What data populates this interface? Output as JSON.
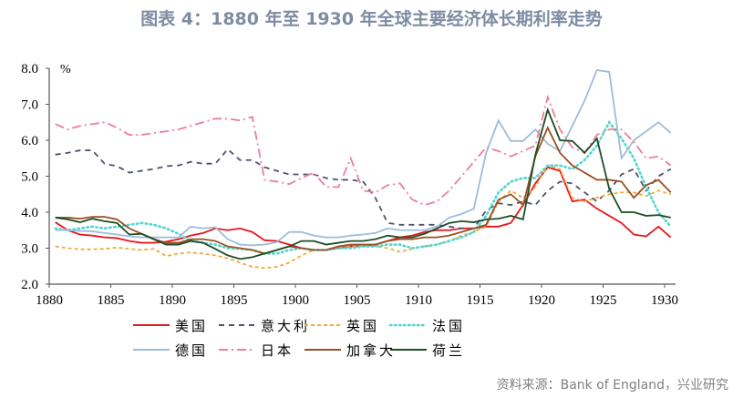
{
  "title": "图表 4：1880 年至 1930 年全球主要经济体长期利率走势",
  "source": "资料来源：Bank of England，兴业研究",
  "chart_data": {
    "type": "line",
    "title": "图表 4：1880 年至 1930 年全球主要经济体长期利率走势",
    "ylabel": "%",
    "xlabel": "",
    "xlim": [
      1880,
      1930
    ],
    "ylim": [
      2.0,
      8.0
    ],
    "xticks": [
      "1880",
      "1885",
      "1890",
      "1895",
      "1900",
      "1905",
      "1910",
      "1915",
      "1920",
      "1925",
      "1930"
    ],
    "yticks": [
      "2.0",
      "3.0",
      "4.0",
      "5.0",
      "6.0",
      "7.0",
      "8.0"
    ],
    "grid": false,
    "legend_placement": "bottom",
    "x_start": 1880,
    "series": [
      {
        "name": "美国",
        "color": "#e8161b",
        "style": "solid",
        "values": [
          3.72,
          3.5,
          3.38,
          3.35,
          3.3,
          3.28,
          3.2,
          3.15,
          3.15,
          3.18,
          3.25,
          3.35,
          3.42,
          3.55,
          3.5,
          3.55,
          3.45,
          3.22,
          3.2,
          3.1,
          3.0,
          2.95,
          2.95,
          3.0,
          3.05,
          3.05,
          3.1,
          3.2,
          3.3,
          3.35,
          3.45,
          3.5,
          3.5,
          3.55,
          3.55,
          3.6,
          3.6,
          3.7,
          4.2,
          4.8,
          5.25,
          5.15,
          4.3,
          4.35,
          4.1,
          3.9,
          3.7,
          3.38,
          3.33,
          3.6,
          3.3
        ]
      },
      {
        "name": "意大利",
        "color": "#4a5470",
        "style": "dash",
        "values": [
          5.6,
          5.65,
          5.72,
          5.72,
          5.35,
          5.28,
          5.1,
          5.15,
          5.2,
          5.28,
          5.3,
          5.4,
          5.35,
          5.35,
          5.75,
          5.45,
          5.45,
          5.25,
          5.15,
          5.05,
          5.05,
          5.05,
          4.95,
          4.9,
          4.9,
          4.85,
          4.4,
          3.7,
          3.65,
          3.65,
          3.65,
          3.65,
          3.6,
          3.55,
          3.55,
          4.05,
          4.25,
          4.2,
          4.3,
          4.2,
          4.6,
          4.85,
          4.8,
          4.55,
          4.3,
          4.6,
          5.05,
          5.2,
          4.6,
          5.0,
          5.2
        ]
      },
      {
        "name": "英国",
        "color": "#f2a93b",
        "style": "shortdash",
        "values": [
          3.05,
          3.0,
          2.97,
          2.97,
          2.98,
          3.02,
          2.98,
          2.95,
          2.98,
          2.78,
          2.85,
          2.88,
          2.85,
          2.8,
          2.72,
          2.6,
          2.48,
          2.45,
          2.48,
          2.6,
          2.8,
          2.95,
          2.95,
          3.05,
          3.05,
          3.05,
          3.05,
          3.0,
          2.9,
          2.98,
          3.05,
          3.1,
          3.2,
          3.35,
          3.45,
          3.6,
          4.3,
          4.6,
          4.4,
          4.7,
          5.3,
          5.2,
          4.4,
          4.3,
          4.4,
          4.5,
          4.55,
          4.55,
          4.45,
          4.6,
          4.5
        ]
      },
      {
        "name": "法国",
        "color": "#4fd6d0",
        "style": "dot",
        "values": [
          3.55,
          3.5,
          3.55,
          3.6,
          3.55,
          3.6,
          3.65,
          3.7,
          3.65,
          3.55,
          3.4,
          3.2,
          3.15,
          3.1,
          3.0,
          2.98,
          2.95,
          2.85,
          2.85,
          2.95,
          3.0,
          2.95,
          2.95,
          3.0,
          3.0,
          3.05,
          3.05,
          3.1,
          3.1,
          3.0,
          3.05,
          3.1,
          3.2,
          3.3,
          3.45,
          3.9,
          4.55,
          4.85,
          4.95,
          4.95,
          5.3,
          5.3,
          5.2,
          5.45,
          5.85,
          6.5,
          6.05,
          5.5,
          4.7,
          4.0,
          3.6
        ]
      },
      {
        "name": "德国",
        "color": "#9dbcdb",
        "style": "solid",
        "values": [
          3.5,
          3.5,
          3.48,
          3.47,
          3.42,
          3.38,
          3.33,
          3.3,
          3.3,
          3.3,
          3.3,
          3.6,
          3.55,
          3.58,
          3.25,
          3.1,
          3.08,
          3.1,
          3.17,
          3.45,
          3.45,
          3.35,
          3.3,
          3.3,
          3.35,
          3.38,
          3.42,
          3.55,
          3.5,
          3.5,
          3.5,
          3.6,
          3.85,
          3.95,
          4.1,
          5.65,
          6.55,
          5.98,
          5.98,
          6.3,
          5.9,
          5.7,
          6.4,
          7.1,
          7.95,
          7.9,
          5.5,
          6.0,
          6.25,
          6.5,
          6.2
        ]
      },
      {
        "name": "日本",
        "color": "#ec7f9b",
        "style": "dashdot",
        "values": [
          6.45,
          6.3,
          6.4,
          6.45,
          6.5,
          6.35,
          6.15,
          6.15,
          6.2,
          6.25,
          6.3,
          6.4,
          6.5,
          6.6,
          6.6,
          6.55,
          6.65,
          4.9,
          4.85,
          4.78,
          4.95,
          5.1,
          4.7,
          4.7,
          5.5,
          4.6,
          4.55,
          4.75,
          4.8,
          4.35,
          4.2,
          4.3,
          4.6,
          5.0,
          5.4,
          5.8,
          5.7,
          5.55,
          5.7,
          5.85,
          7.2,
          6.3,
          5.8,
          5.65,
          6.15,
          6.3,
          6.3,
          5.95,
          5.5,
          5.55,
          5.3
        ]
      },
      {
        "name": "加拿大",
        "color": "#9a4f24",
        "style": "solid",
        "values": [
          3.85,
          3.85,
          3.82,
          3.87,
          3.87,
          3.8,
          3.55,
          3.4,
          3.25,
          3.15,
          3.15,
          3.25,
          3.25,
          3.2,
          3.05,
          3.0,
          2.95,
          2.85,
          2.95,
          3.05,
          3.0,
          2.95,
          2.95,
          3.05,
          3.1,
          3.1,
          3.1,
          3.2,
          3.25,
          3.25,
          3.3,
          3.3,
          3.35,
          3.45,
          3.55,
          3.65,
          4.35,
          4.5,
          4.2,
          5.55,
          6.35,
          5.65,
          5.3,
          5.1,
          4.9,
          4.9,
          4.85,
          4.4,
          4.75,
          4.9,
          4.55
        ]
      },
      {
        "name": "荷兰",
        "color": "#1d4d24",
        "style": "solid",
        "values": [
          3.85,
          3.8,
          3.72,
          3.82,
          3.75,
          3.7,
          3.38,
          3.4,
          3.25,
          3.1,
          3.1,
          3.2,
          3.15,
          2.98,
          2.8,
          2.7,
          2.75,
          2.85,
          2.95,
          3.05,
          3.2,
          3.2,
          3.1,
          3.15,
          3.2,
          3.2,
          3.25,
          3.35,
          3.3,
          3.3,
          3.4,
          3.55,
          3.7,
          3.75,
          3.72,
          3.8,
          3.82,
          3.9,
          3.8,
          5.6,
          6.85,
          6.0,
          5.98,
          5.65,
          6.05,
          4.65,
          4.0,
          4.0,
          3.9,
          3.92,
          3.85
        ]
      }
    ]
  }
}
